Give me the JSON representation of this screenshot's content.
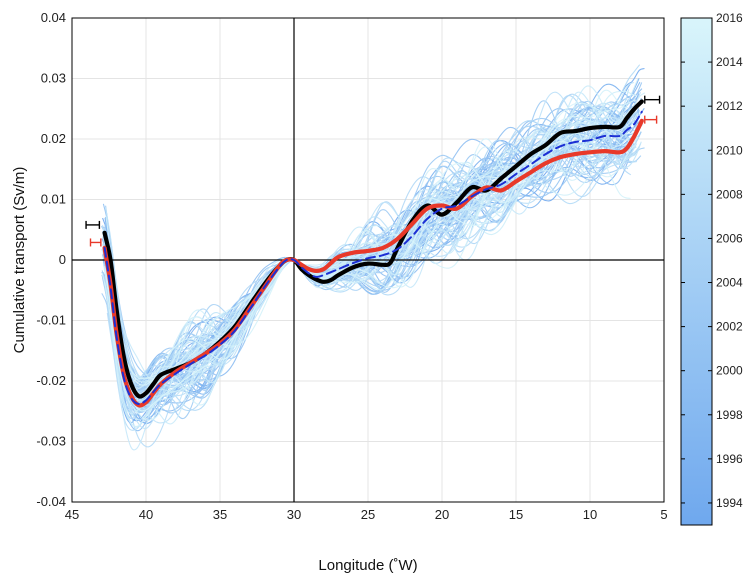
{
  "chart_data": {
    "type": "line",
    "xlabel": "Longitude (˚W)",
    "ylabel": "Cumulative transport (Sv/m)",
    "xlim": [
      45,
      5
    ],
    "ylim": [
      -0.04,
      0.04
    ],
    "x_reversed": true,
    "xticks": [
      45,
      40,
      35,
      30,
      25,
      20,
      15,
      10,
      5
    ],
    "yticks": [
      -0.04,
      -0.03,
      -0.02,
      -0.01,
      0,
      0.01,
      0.02,
      0.03,
      0.04
    ],
    "ytick_labels": [
      "-0.04",
      "-0.03",
      "-0.02",
      "-0.01",
      "0",
      "0.01",
      "0.02",
      "0.03",
      "0.04"
    ],
    "grid": true,
    "reference_lines": {
      "x": 30,
      "y": 0
    },
    "colorbar": {
      "ticks": [
        1994,
        1996,
        1998,
        2000,
        2002,
        2004,
        2006,
        2008,
        2010,
        2012,
        2014,
        2016
      ],
      "range": [
        1993,
        2016
      ],
      "color_low": "#6fa8ee",
      "color_high": "#d9f5fb"
    },
    "ensemble": {
      "count": 90,
      "color_range": [
        "#6fa8ee",
        "#d9f5fb"
      ]
    },
    "series": [
      {
        "color": "#000000",
        "style": "solid",
        "x": [
          42.8,
          42.4,
          42.0,
          41.5,
          41.0,
          40.5,
          40.0,
          39.5,
          39.0,
          38.0,
          37.0,
          36.0,
          35.0,
          34.0,
          33.0,
          32.0,
          31.0,
          30.5,
          30.0,
          29.5,
          29.0,
          28.5,
          28.0,
          27.5,
          27.0,
          26.0,
          25.0,
          24.0,
          23.5,
          23.0,
          22.0,
          21.0,
          20.0,
          19.0,
          18.0,
          17.0,
          16.0,
          15.0,
          14.0,
          13.0,
          12.0,
          11.0,
          10.0,
          9.0,
          8.0,
          7.5,
          7.0,
          6.5
        ],
        "y": [
          0.0045,
          0.0,
          -0.008,
          -0.016,
          -0.0205,
          -0.0225,
          -0.022,
          -0.0205,
          -0.019,
          -0.018,
          -0.017,
          -0.0155,
          -0.0135,
          -0.011,
          -0.0075,
          -0.004,
          -0.001,
          0.0,
          0.0,
          -0.0015,
          -0.0025,
          -0.0032,
          -0.0036,
          -0.0033,
          -0.0025,
          -0.0012,
          -0.0006,
          -0.0008,
          -0.0005,
          0.002,
          0.0065,
          0.009,
          0.0075,
          0.0095,
          0.012,
          0.0115,
          0.0135,
          0.0155,
          0.0175,
          0.019,
          0.021,
          0.0213,
          0.0218,
          0.022,
          0.022,
          0.0235,
          0.025,
          0.0262
        ]
      },
      {
        "color": "#e8392a",
        "style": "solid",
        "x": [
          42.8,
          42.4,
          42.0,
          41.5,
          41.0,
          40.5,
          40.0,
          39.5,
          39.0,
          38.0,
          37.0,
          36.0,
          35.0,
          34.0,
          33.0,
          32.0,
          31.0,
          30.5,
          30.0,
          29.5,
          29.0,
          28.5,
          28.0,
          27.5,
          27.0,
          26.0,
          25.0,
          24.0,
          23.0,
          22.0,
          21.0,
          20.0,
          19.0,
          18.0,
          17.0,
          16.0,
          15.0,
          14.0,
          13.0,
          12.0,
          11.0,
          10.0,
          9.0,
          8.0,
          7.5,
          7.0,
          6.5
        ],
        "y": [
          0.002,
          -0.004,
          -0.012,
          -0.019,
          -0.0225,
          -0.024,
          -0.0235,
          -0.022,
          -0.0205,
          -0.0185,
          -0.017,
          -0.0155,
          -0.0138,
          -0.0115,
          -0.008,
          -0.0045,
          -0.001,
          0.0,
          0.0,
          -0.0008,
          -0.0015,
          -0.0018,
          -0.0015,
          -0.0005,
          0.0005,
          0.0012,
          0.0015,
          0.002,
          0.0035,
          0.006,
          0.0085,
          0.009,
          0.0085,
          0.0105,
          0.012,
          0.0115,
          0.013,
          0.0145,
          0.016,
          0.017,
          0.0175,
          0.0178,
          0.018,
          0.0178,
          0.0185,
          0.0205,
          0.023
        ]
      },
      {
        "color": "#1c2fd4",
        "style": "dashed",
        "x": [
          42.8,
          42.4,
          42.0,
          41.5,
          41.0,
          40.5,
          40.0,
          39.5,
          39.0,
          38.0,
          37.0,
          36.0,
          35.0,
          34.0,
          33.0,
          32.0,
          31.0,
          30.5,
          30.0,
          29.5,
          29.0,
          28.5,
          28.0,
          27.0,
          26.0,
          25.0,
          24.0,
          23.0,
          22.0,
          21.0,
          20.0,
          19.0,
          18.0,
          17.0,
          16.0,
          15.0,
          14.0,
          13.0,
          12.0,
          11.0,
          10.0,
          9.0,
          8.0,
          7.5,
          7.0,
          6.5
        ],
        "y": [
          0.002,
          -0.0045,
          -0.0125,
          -0.0195,
          -0.0228,
          -0.0238,
          -0.0232,
          -0.0218,
          -0.0205,
          -0.0188,
          -0.0172,
          -0.0158,
          -0.014,
          -0.0117,
          -0.0082,
          -0.0045,
          -0.0012,
          0.0,
          0.0,
          -0.0012,
          -0.0022,
          -0.0028,
          -0.0025,
          -0.0015,
          -0.0005,
          0.0003,
          0.0008,
          0.0018,
          0.004,
          0.0068,
          0.0085,
          0.009,
          0.0105,
          0.0117,
          0.0125,
          0.0142,
          0.0158,
          0.0175,
          0.0188,
          0.0195,
          0.0198,
          0.0205,
          0.0205,
          0.0215,
          0.0225,
          0.0245
        ]
      }
    ],
    "error_bars": [
      {
        "color": "#000000",
        "x": 43.6,
        "y": 0.0058,
        "half_width": 0.45,
        "side": "left"
      },
      {
        "color": "#e8392a",
        "x": 43.4,
        "y": 0.0029,
        "half_width": 0.35,
        "side": "left"
      },
      {
        "color": "#000000",
        "x": 5.8,
        "y": 0.0265,
        "half_width": 0.5,
        "side": "right"
      },
      {
        "color": "#e8392a",
        "x": 5.9,
        "y": 0.0232,
        "half_width": 0.4,
        "side": "right"
      }
    ]
  }
}
